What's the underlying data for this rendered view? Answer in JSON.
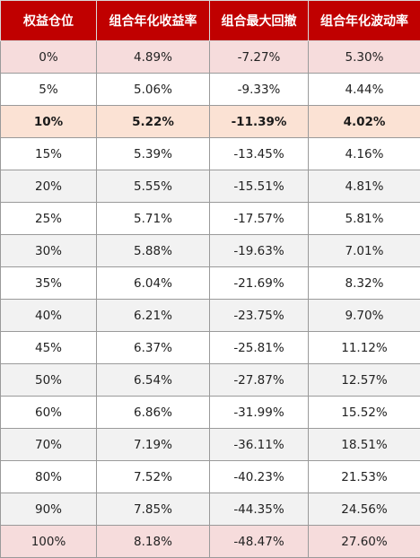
{
  "table": {
    "headers": [
      "权益仓位",
      "组合年化收益率",
      "组合最大回撤",
      "组合年化波动率"
    ],
    "highlight_row_index": 2,
    "rows": [
      [
        "0%",
        "4.89%",
        "-7.27%",
        "5.30%"
      ],
      [
        "5%",
        "5.06%",
        "-9.33%",
        "4.44%"
      ],
      [
        "10%",
        "5.22%",
        "-11.39%",
        "4.02%"
      ],
      [
        "15%",
        "5.39%",
        "-13.45%",
        "4.16%"
      ],
      [
        "20%",
        "5.55%",
        "-15.51%",
        "4.81%"
      ],
      [
        "25%",
        "5.71%",
        "-17.57%",
        "5.81%"
      ],
      [
        "30%",
        "5.88%",
        "-19.63%",
        "7.01%"
      ],
      [
        "35%",
        "6.04%",
        "-21.69%",
        "8.32%"
      ],
      [
        "40%",
        "6.21%",
        "-23.75%",
        "9.70%"
      ],
      [
        "45%",
        "6.37%",
        "-25.81%",
        "11.12%"
      ],
      [
        "50%",
        "6.54%",
        "-27.87%",
        "12.57%"
      ],
      [
        "60%",
        "6.86%",
        "-31.99%",
        "15.52%"
      ],
      [
        "70%",
        "7.19%",
        "-36.11%",
        "18.51%"
      ],
      [
        "80%",
        "7.52%",
        "-40.23%",
        "21.53%"
      ],
      [
        "90%",
        "7.85%",
        "-44.35%",
        "24.56%"
      ],
      [
        "100%",
        "8.18%",
        "-48.47%",
        "27.60%"
      ]
    ],
    "colors": {
      "header_bg": "#c00000",
      "header_text": "#ffffff",
      "endpoint_row_bg": "#f6dcdc",
      "highlight_row_bg": "#fbe2d4",
      "stripe_bg": "#f2f2f2"
    }
  }
}
